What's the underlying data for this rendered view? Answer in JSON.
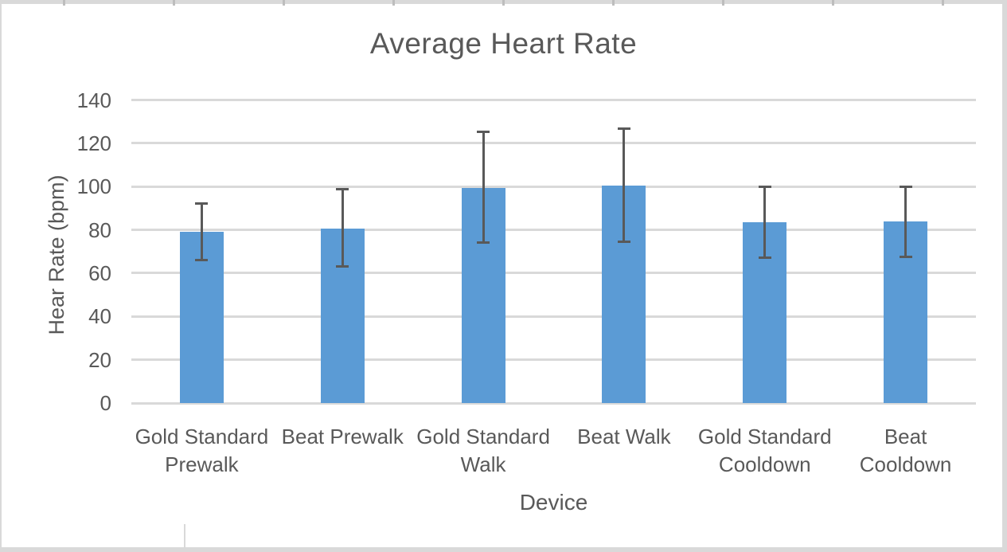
{
  "chart_data": {
    "type": "bar",
    "title": "Average Heart Rate",
    "xlabel": "Device",
    "ylabel": "Hear Rate (bpm)",
    "ylim": [
      0,
      140
    ],
    "yticks": [
      0,
      20,
      40,
      60,
      80,
      100,
      120,
      140
    ],
    "grid": true,
    "legend": "none",
    "categories": [
      "Gold Standard Prewalk",
      "Beat Prewalk",
      "Gold Standard Walk",
      "Beat Walk",
      "Gold Standard Cooldown",
      "Beat Cooldown"
    ],
    "category_label_lines": [
      [
        "Gold Standard",
        "Prewalk"
      ],
      [
        "Beat Prewalk"
      ],
      [
        "Gold Standard",
        "Walk"
      ],
      [
        "Beat Walk"
      ],
      [
        "Gold Standard",
        "Cooldown"
      ],
      [
        "Beat",
        "Cooldown"
      ]
    ],
    "series": [
      {
        "name": "Average Heart Rate",
        "values": [
          79,
          80.5,
          99.5,
          100.5,
          83.5,
          84
        ],
        "error_low": [
          66,
          63,
          74,
          74.5,
          67,
          67.5
        ],
        "error_high": [
          92.5,
          99,
          125.5,
          127,
          100,
          100
        ]
      }
    ],
    "colors": {
      "bar_fill": "#5b9bd5",
      "gridline": "#d9d9d9",
      "error_bar": "#595959",
      "text": "#595959",
      "frame_band": "#d9d9d9"
    }
  }
}
